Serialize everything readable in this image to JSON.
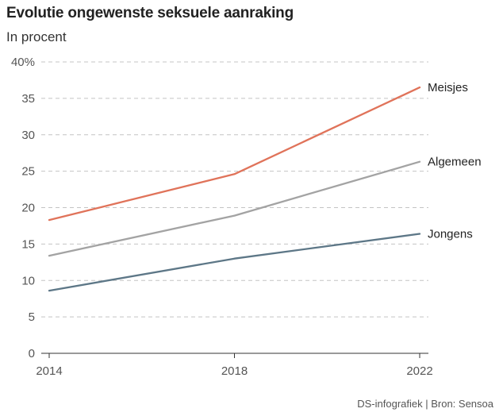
{
  "title": "Evolutie ongewenste seksuele aanraking",
  "subtitle": "In procent",
  "footer": "DS-infografiek | Bron: Sensoa",
  "chart_data": {
    "type": "line",
    "x": [
      2014,
      2018,
      2022
    ],
    "series": [
      {
        "name": "Meisjes",
        "values": [
          18.3,
          24.6,
          36.5
        ],
        "color": "#e0735a"
      },
      {
        "name": "Algemeen",
        "values": [
          13.4,
          18.9,
          26.3
        ],
        "color": "#a3a3a3"
      },
      {
        "name": "Jongens",
        "values": [
          8.6,
          13.0,
          16.4
        ],
        "color": "#5d7787"
      }
    ],
    "yticks": [
      "0",
      "5",
      "10",
      "15",
      "20",
      "25",
      "30",
      "35",
      "40%"
    ],
    "xticks": [
      "2014",
      "2018",
      "2022"
    ],
    "ylim": [
      0,
      40
    ],
    "grid": "horizontal dashed",
    "legend": "labels at line ends"
  }
}
